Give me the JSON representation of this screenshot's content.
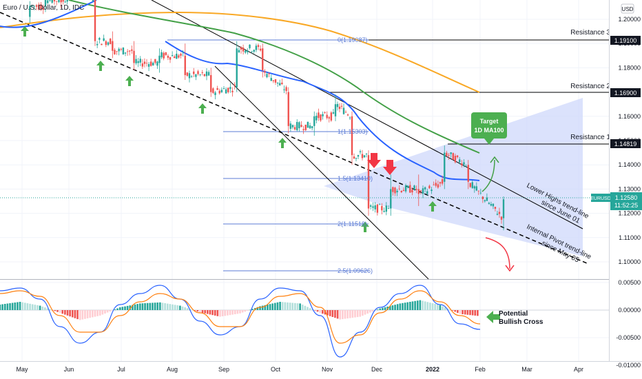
{
  "header": {
    "symbol_title": "Euro / U.S. Dollar, 1D, IDC",
    "currency": "USD"
  },
  "price_axis": {
    "ticks": [
      "1.20000",
      "1.19000",
      "1.18000",
      "1.17000",
      "1.16000",
      "1.15000",
      "1.14000",
      "1.13000",
      "1.12000",
      "1.11000",
      "1.10000"
    ],
    "current_symbol": "EURUSD",
    "current_price": "1.12580",
    "countdown": "11:52:25",
    "resistance_badges": [
      "1.19100",
      "1.16900",
      "1.14819"
    ]
  },
  "macd_axis": {
    "ticks": [
      "0.00500",
      "0.00000",
      "-0.00500",
      "-0.01000"
    ]
  },
  "time_axis": {
    "ticks": [
      "May",
      "Jun",
      "Jul",
      "Aug",
      "Sep",
      "Oct",
      "Nov",
      "Dec",
      "2022",
      "Feb",
      "Mar",
      "Apr"
    ]
  },
  "annotations": {
    "resistance_3": "Resistance 3",
    "resistance_2": "Resistance 2",
    "resistance_1": "Resistance 1",
    "target_line1": "Target",
    "target_line2": "1D MA100",
    "lower_highs_1": "Lower Highs trend-line",
    "lower_highs_2": "since June 01",
    "internal_pivot_1": "Internal Pivot trend-line",
    "internal_pivot_2": "since May 05",
    "bullish_1": "Potential",
    "bullish_2": "Bullish Cross"
  },
  "fib_levels": [
    {
      "label": "0(1.19087)"
    },
    {
      "label": "1(1.15303)"
    },
    {
      "label": "1.5(1.13410)"
    },
    {
      "label": "2(1.11518)"
    },
    {
      "label": "2.5(1.09626)"
    }
  ],
  "colors": {
    "up": "#26a69a",
    "down": "#ef5350",
    "ma50": "#2962ff",
    "ma100": "#43a047",
    "ma200": "#f9a825",
    "macd": "#2962ff",
    "signal": "#ff7f0e",
    "arrow_up": "#4caf50",
    "arrow_down": "#f23645",
    "channel": "#cfd8fb",
    "fib": "#5b7bd5"
  },
  "chart_data": [
    {
      "type": "candlestick",
      "title": "Euro / U.S. Dollar, 1D, IDC",
      "ylim": [
        1.09,
        1.205
      ],
      "x_labels": [
        "May",
        "Jun",
        "Jul",
        "Aug",
        "Sep",
        "Oct",
        "Nov",
        "Dec",
        "2022",
        "Feb",
        "Mar",
        "Apr"
      ],
      "candles": [
        {
          "month": "May",
          "o": 1.201,
          "h": 1.2075,
          "l": 1.1985,
          "c": 1.2055
        },
        {
          "month": "May",
          "o": 1.2055,
          "h": 1.21,
          "l": 1.203,
          "c": 1.208
        },
        {
          "month": "May",
          "o": 1.208,
          "h": 1.212,
          "l": 1.2045,
          "c": 1.207
        },
        {
          "month": "Jun",
          "o": 1.212,
          "h": 1.224,
          "l": 1.208,
          "c": 1.215
        },
        {
          "month": "Jun",
          "o": 1.208,
          "h": 1.214,
          "l": 1.189,
          "c": 1.191
        },
        {
          "month": "Jun",
          "o": 1.191,
          "h": 1.195,
          "l": 1.184,
          "c": 1.187
        },
        {
          "month": "Jul",
          "o": 1.187,
          "h": 1.191,
          "l": 1.179,
          "c": 1.182
        },
        {
          "month": "Jul",
          "o": 1.182,
          "h": 1.188,
          "l": 1.178,
          "c": 1.185
        },
        {
          "month": "Aug",
          "o": 1.185,
          "h": 1.19,
          "l": 1.175,
          "c": 1.177
        },
        {
          "month": "Aug",
          "o": 1.177,
          "h": 1.18,
          "l": 1.168,
          "c": 1.17
        },
        {
          "month": "Sep",
          "o": 1.172,
          "h": 1.191,
          "l": 1.17,
          "c": 1.188
        },
        {
          "month": "Sep",
          "o": 1.188,
          "h": 1.19,
          "l": 1.176,
          "c": 1.179
        },
        {
          "month": "Oct",
          "o": 1.17,
          "h": 1.172,
          "l": 1.153,
          "c": 1.156
        },
        {
          "month": "Oct",
          "o": 1.156,
          "h": 1.162,
          "l": 1.152,
          "c": 1.16
        },
        {
          "month": "Nov",
          "o": 1.16,
          "h": 1.169,
          "l": 1.158,
          "c": 1.165
        },
        {
          "month": "Nov",
          "o": 1.16,
          "h": 1.162,
          "l": 1.14,
          "c": 1.144
        },
        {
          "month": "Nov",
          "o": 1.144,
          "h": 1.146,
          "l": 1.119,
          "c": 1.122
        },
        {
          "month": "Dec",
          "o": 1.122,
          "h": 1.136,
          "l": 1.119,
          "c": 1.13
        },
        {
          "month": "Dec",
          "o": 1.13,
          "h": 1.136,
          "l": 1.123,
          "c": 1.128
        },
        {
          "month": "2022",
          "o": 1.133,
          "h": 1.148,
          "l": 1.13,
          "c": 1.145
        },
        {
          "month": "2022",
          "o": 1.14,
          "h": 1.142,
          "l": 1.13,
          "c": 1.133
        },
        {
          "month": "Feb",
          "o": 1.118,
          "h": 1.127,
          "l": 1.113,
          "c": 1.1258
        }
      ],
      "moving_averages": [
        {
          "name": "MA50",
          "points": [
            1.2,
            1.186,
            1.183,
            1.176,
            1.177,
            1.165,
            1.156,
            1.144,
            1.137,
            1.13,
            1.129
          ]
        },
        {
          "name": "MA100",
          "points": [
            1.207,
            1.199,
            1.194,
            1.188,
            1.184,
            1.177,
            1.17,
            1.162,
            1.155,
            1.149,
            1.144
          ]
        },
        {
          "name": "MA200",
          "points": [
            1.204,
            1.203,
            1.202,
            1.2,
            1.197,
            1.19,
            1.182,
            1.176,
            1.17
          ]
        }
      ],
      "horizontal_levels": [
        1.191,
        1.169,
        1.14819
      ],
      "fibonacci": [
        1.19087,
        1.15303,
        1.1341,
        1.11518,
        1.09626
      ],
      "last_price": 1.1258
    },
    {
      "type": "macd",
      "ylim": [
        -0.011,
        0.006
      ],
      "y_ticks": [
        0.005,
        0.0,
        -0.005,
        -0.01
      ],
      "histogram": [
        0.001,
        0.0015,
        0.0008,
        -0.0005,
        -0.0018,
        -0.001,
        0.0005,
        0.0012,
        0.0014,
        0.0008,
        -0.0004,
        -0.0012,
        -0.0006,
        0.0007,
        0.0015,
        0.0012,
        -0.0005,
        -0.0017,
        -0.0012,
        0.0003,
        0.0012,
        0.0018,
        0.0009,
        -0.0007,
        -0.0011
      ],
      "macd_line": [
        0.0035,
        0.004,
        0.002,
        -0.003,
        -0.006,
        -0.004,
        0.001,
        0.003,
        0.0045,
        0.002,
        -0.002,
        -0.0045,
        -0.003,
        0.002,
        0.004,
        0.0035,
        -0.001,
        -0.0085,
        -0.004,
        0.0005,
        0.003,
        0.0045,
        0.001,
        -0.0025,
        -0.0035
      ],
      "signal_line": [
        0.003,
        0.0035,
        0.0025,
        -0.001,
        -0.004,
        -0.004,
        -0.001,
        0.0015,
        0.003,
        0.002,
        -0.0005,
        -0.003,
        -0.003,
        0.0005,
        0.0025,
        0.003,
        0.0005,
        -0.006,
        -0.0045,
        -0.0005,
        0.002,
        0.0035,
        0.0015,
        -0.001,
        -0.0025
      ]
    }
  ]
}
